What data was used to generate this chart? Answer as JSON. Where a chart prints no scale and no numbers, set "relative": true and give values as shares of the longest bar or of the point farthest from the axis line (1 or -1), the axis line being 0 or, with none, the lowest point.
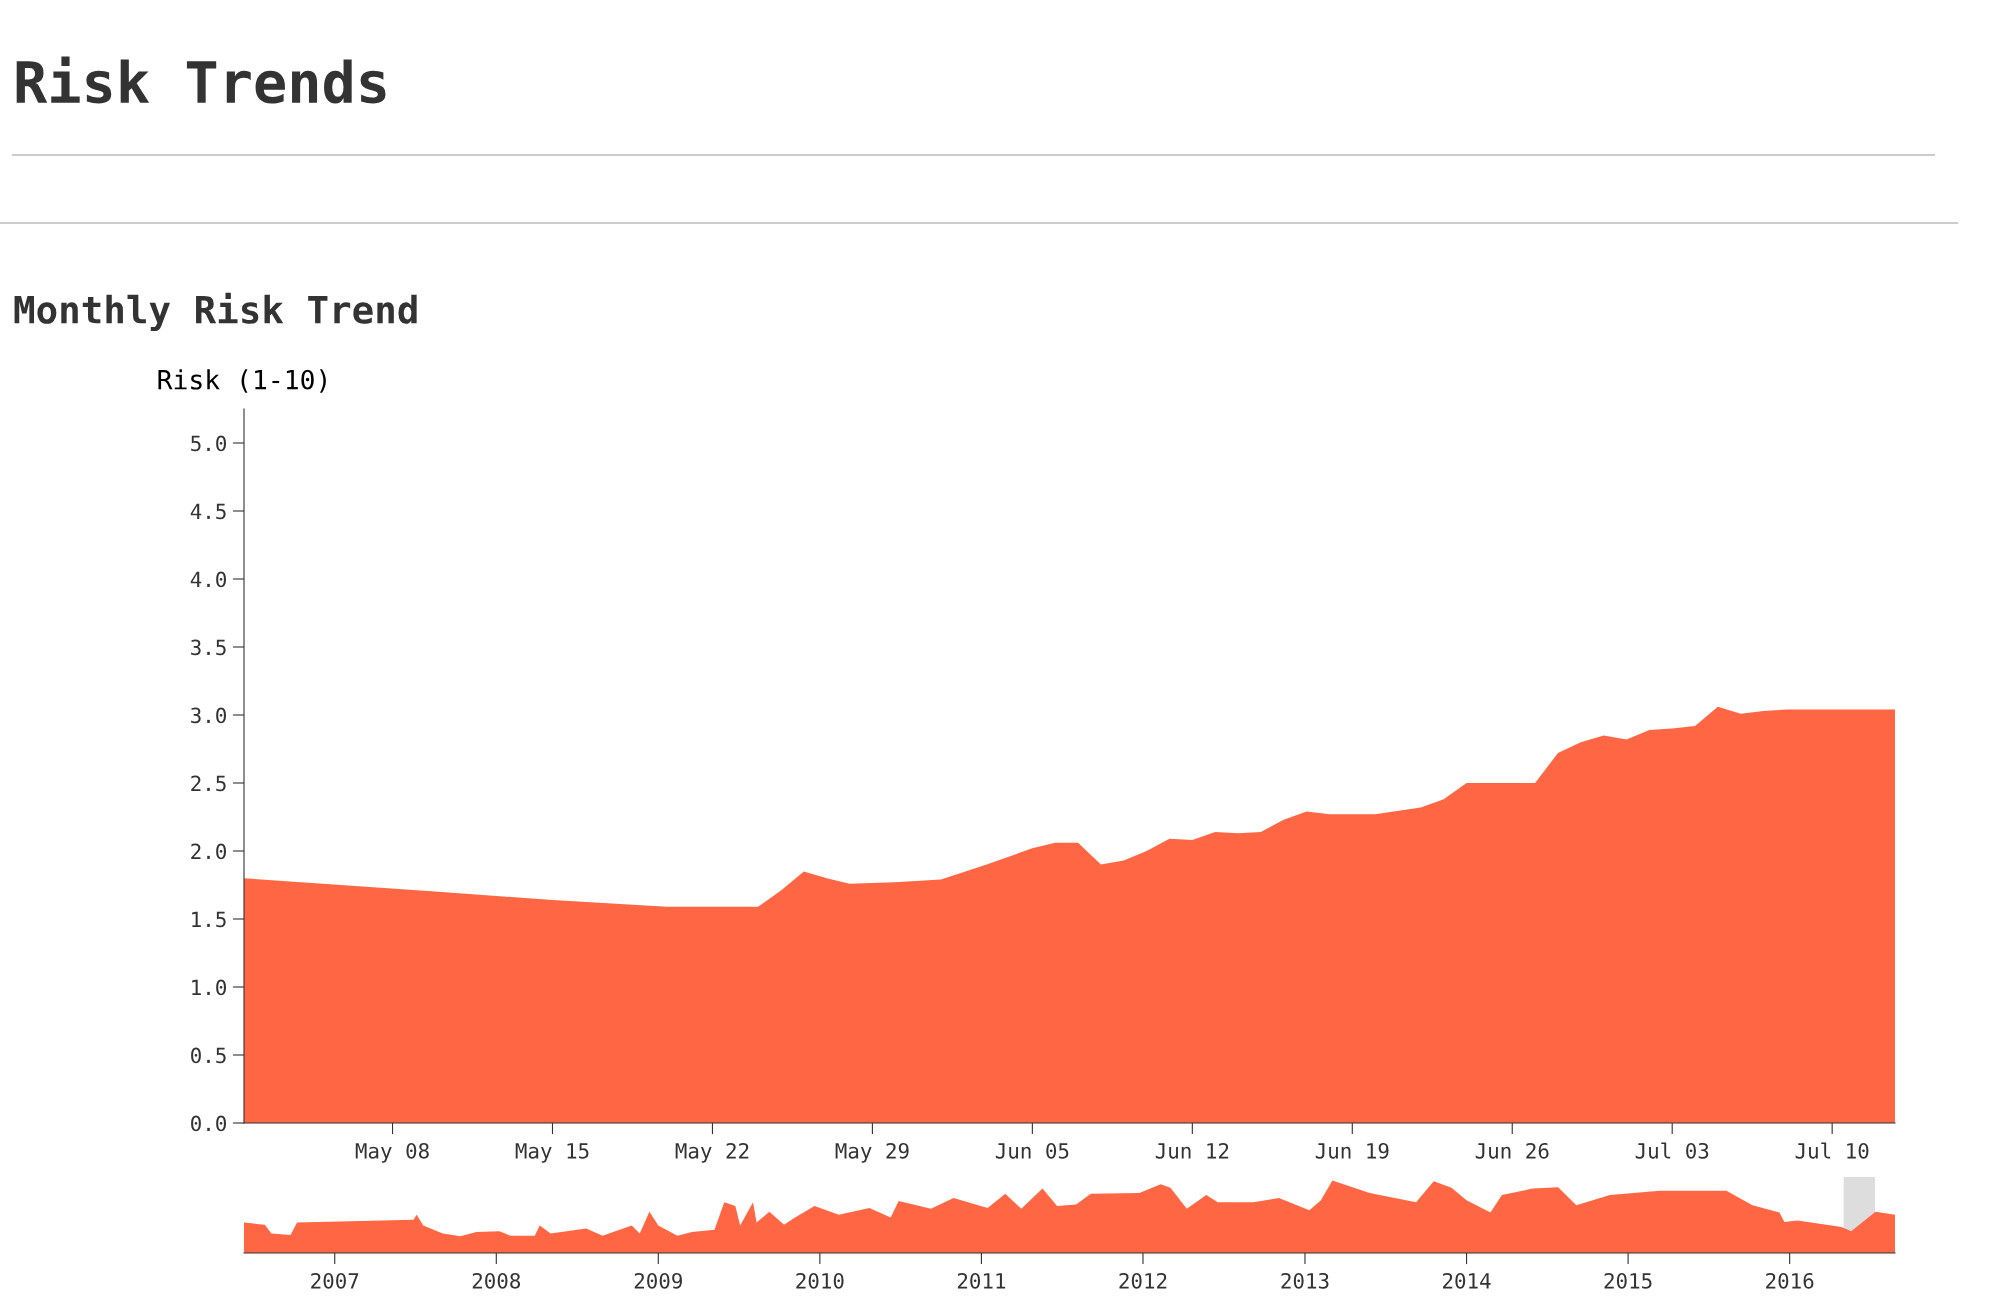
{
  "chart_data": [
    {
      "type": "area",
      "title": "Risk Trends",
      "subtitle": "Monthly Risk Trend",
      "ylabel": "Risk (1-10)",
      "color": "#ff6643",
      "x": [
        "2016-05-01T12:00",
        "2016-05-10",
        "2016-05-15",
        "2016-05-20",
        "2016-05-24",
        "2016-05-25",
        "2016-05-26",
        "2016-05-27",
        "2016-05-28",
        "2016-05-30",
        "2016-06-01",
        "2016-06-03",
        "2016-06-05",
        "2016-06-06",
        "2016-06-07",
        "2016-06-08",
        "2016-06-09",
        "2016-06-10",
        "2016-06-11",
        "2016-06-12",
        "2016-06-13",
        "2016-06-14",
        "2016-06-15",
        "2016-06-16",
        "2016-06-17",
        "2016-06-18",
        "2016-06-19",
        "2016-06-20",
        "2016-06-22",
        "2016-06-23",
        "2016-06-24",
        "2016-06-25",
        "2016-06-26",
        "2016-06-27",
        "2016-06-28",
        "2016-06-29",
        "2016-06-30",
        "2016-07-01",
        "2016-07-02",
        "2016-07-03",
        "2016-07-04",
        "2016-07-05",
        "2016-07-06",
        "2016-07-07",
        "2016-07-08",
        "2016-07-10",
        "2016-07-12T18:00"
      ],
      "values": [
        1.8,
        1.7,
        1.64,
        1.59,
        1.59,
        1.71,
        1.85,
        1.8,
        1.76,
        1.77,
        1.79,
        1.9,
        2.02,
        2.06,
        2.06,
        1.9,
        1.93,
        2.0,
        2.09,
        2.08,
        2.14,
        2.13,
        2.14,
        2.23,
        2.29,
        2.27,
        2.27,
        2.27,
        2.32,
        2.38,
        2.5,
        2.5,
        2.5,
        2.5,
        2.72,
        2.8,
        2.85,
        2.82,
        2.89,
        2.9,
        2.92,
        3.06,
        3.01,
        3.03,
        3.04,
        3.04,
        3.04
      ],
      "xlim": [
        "2016-05-01T12:00",
        "2016-07-12T18:00"
      ],
      "xticks": [
        {
          "value": "2016-05-08",
          "label": "May 08"
        },
        {
          "value": "2016-05-15",
          "label": "May 15"
        },
        {
          "value": "2016-05-22",
          "label": "May 22"
        },
        {
          "value": "2016-05-29",
          "label": "May 29"
        },
        {
          "value": "2016-06-05",
          "label": "Jun 05"
        },
        {
          "value": "2016-06-12",
          "label": "Jun 12"
        },
        {
          "value": "2016-06-19",
          "label": "Jun 19"
        },
        {
          "value": "2016-06-26",
          "label": "Jun 26"
        },
        {
          "value": "2016-07-03",
          "label": "Jul 03"
        },
        {
          "value": "2016-07-10",
          "label": "Jul 10"
        }
      ],
      "ylim": [
        0,
        5.25
      ],
      "yticks": [
        {
          "value": 0,
          "label": "0.0"
        },
        {
          "value": 0.5,
          "label": "0.5"
        },
        {
          "value": 1,
          "label": "1.0"
        },
        {
          "value": 1.5,
          "label": "1.5"
        },
        {
          "value": 2,
          "label": "2.0"
        },
        {
          "value": 2.5,
          "label": "2.5"
        },
        {
          "value": 3,
          "label": "3.0"
        },
        {
          "value": 3.5,
          "label": "3.5"
        },
        {
          "value": 4,
          "label": "4.0"
        },
        {
          "value": 4.5,
          "label": "4.5"
        },
        {
          "value": 5,
          "label": "5.0"
        }
      ]
    },
    {
      "type": "area",
      "relative": true,
      "color": "#ff6643",
      "tick_labels": "x",
      "x": [
        "2006-06-10",
        "2006-07-27",
        "2006-08-11",
        "2006-09-23",
        "2006-10-08",
        "2007-06-28",
        "2007-07-05",
        "2007-07-20",
        "2007-09-02",
        "2007-10-12",
        "2007-11-17",
        "2008-01-08",
        "2008-02-02",
        "2008-03-28",
        "2008-04-08",
        "2008-05-03",
        "2008-07-22",
        "2008-08-28",
        "2008-11-02",
        "2008-11-20",
        "2008-12-12",
        "2009-01-01",
        "2009-02-13",
        "2009-03-18",
        "2009-05-08",
        "2009-05-30",
        "2009-06-24",
        "2009-07-05",
        "2009-08-03",
        "2009-08-11",
        "2009-09-09",
        "2009-10-12",
        "2009-11-06",
        "2009-12-20",
        "2010-02-13",
        "2010-04-23",
        "2010-06-10",
        "2010-06-28",
        "2010-09-09",
        "2010-10-30",
        "2011-01-15",
        "2011-02-24",
        "2011-04-01",
        "2011-05-19",
        "2011-06-21",
        "2011-08-03",
        "2011-09-05",
        "2011-12-24",
        "2012-02-10",
        "2012-03-03",
        "2012-04-09",
        "2012-05-23",
        "2012-06-18",
        "2012-09-06",
        "2012-11-03",
        "2013-01-11",
        "2013-02-06",
        "2013-03-04",
        "2013-05-27",
        "2013-09-09",
        "2013-10-19",
        "2013-11-28",
        "2014-01-01",
        "2014-02-24",
        "2014-03-22",
        "2014-05-30",
        "2014-07-27",
        "2014-09-06",
        "2014-11-21",
        "2015-03-14",
        "2015-08-11",
        "2015-10-09",
        "2015-12-09",
        "2015-12-20",
        "2016-01-19",
        "2016-04-27",
        "2016-05-19",
        "2016-07-13",
        "2016-08-26"
      ],
      "values": [
        0.42,
        0.39,
        0.27,
        0.25,
        0.42,
        0.46,
        0.53,
        0.38,
        0.27,
        0.23,
        0.29,
        0.3,
        0.24,
        0.24,
        0.38,
        0.27,
        0.34,
        0.24,
        0.38,
        0.27,
        0.57,
        0.38,
        0.24,
        0.29,
        0.32,
        0.7,
        0.65,
        0.38,
        0.7,
        0.42,
        0.57,
        0.39,
        0.49,
        0.65,
        0.53,
        0.62,
        0.49,
        0.72,
        0.61,
        0.76,
        0.62,
        0.82,
        0.61,
        0.89,
        0.65,
        0.67,
        0.82,
        0.83,
        0.95,
        0.9,
        0.61,
        0.8,
        0.7,
        0.7,
        0.76,
        0.59,
        0.73,
        1.0,
        0.83,
        0.7,
        0.99,
        0.9,
        0.73,
        0.56,
        0.8,
        0.89,
        0.91,
        0.66,
        0.8,
        0.86,
        0.86,
        0.66,
        0.56,
        0.43,
        0.45,
        0.36,
        0.3,
        0.57,
        0.53
      ],
      "xlim": [
        "2006-06-10",
        "2016-08-26"
      ],
      "xticks": [
        {
          "value": "2007-01-01",
          "label": "2007"
        },
        {
          "value": "2008-01-01",
          "label": "2008"
        },
        {
          "value": "2009-01-01",
          "label": "2009"
        },
        {
          "value": "2010-01-01",
          "label": "2010"
        },
        {
          "value": "2011-01-01",
          "label": "2011"
        },
        {
          "value": "2012-01-01",
          "label": "2012"
        },
        {
          "value": "2013-01-01",
          "label": "2013"
        },
        {
          "value": "2014-01-01",
          "label": "2014"
        },
        {
          "value": "2015-01-01",
          "label": "2015"
        },
        {
          "value": "2016-01-01",
          "label": "2016"
        }
      ],
      "bands": [
        {
          "axis": "x",
          "from": "2016-05-02",
          "to": "2016-07-12",
          "color": "#dddddd"
        }
      ]
    }
  ]
}
